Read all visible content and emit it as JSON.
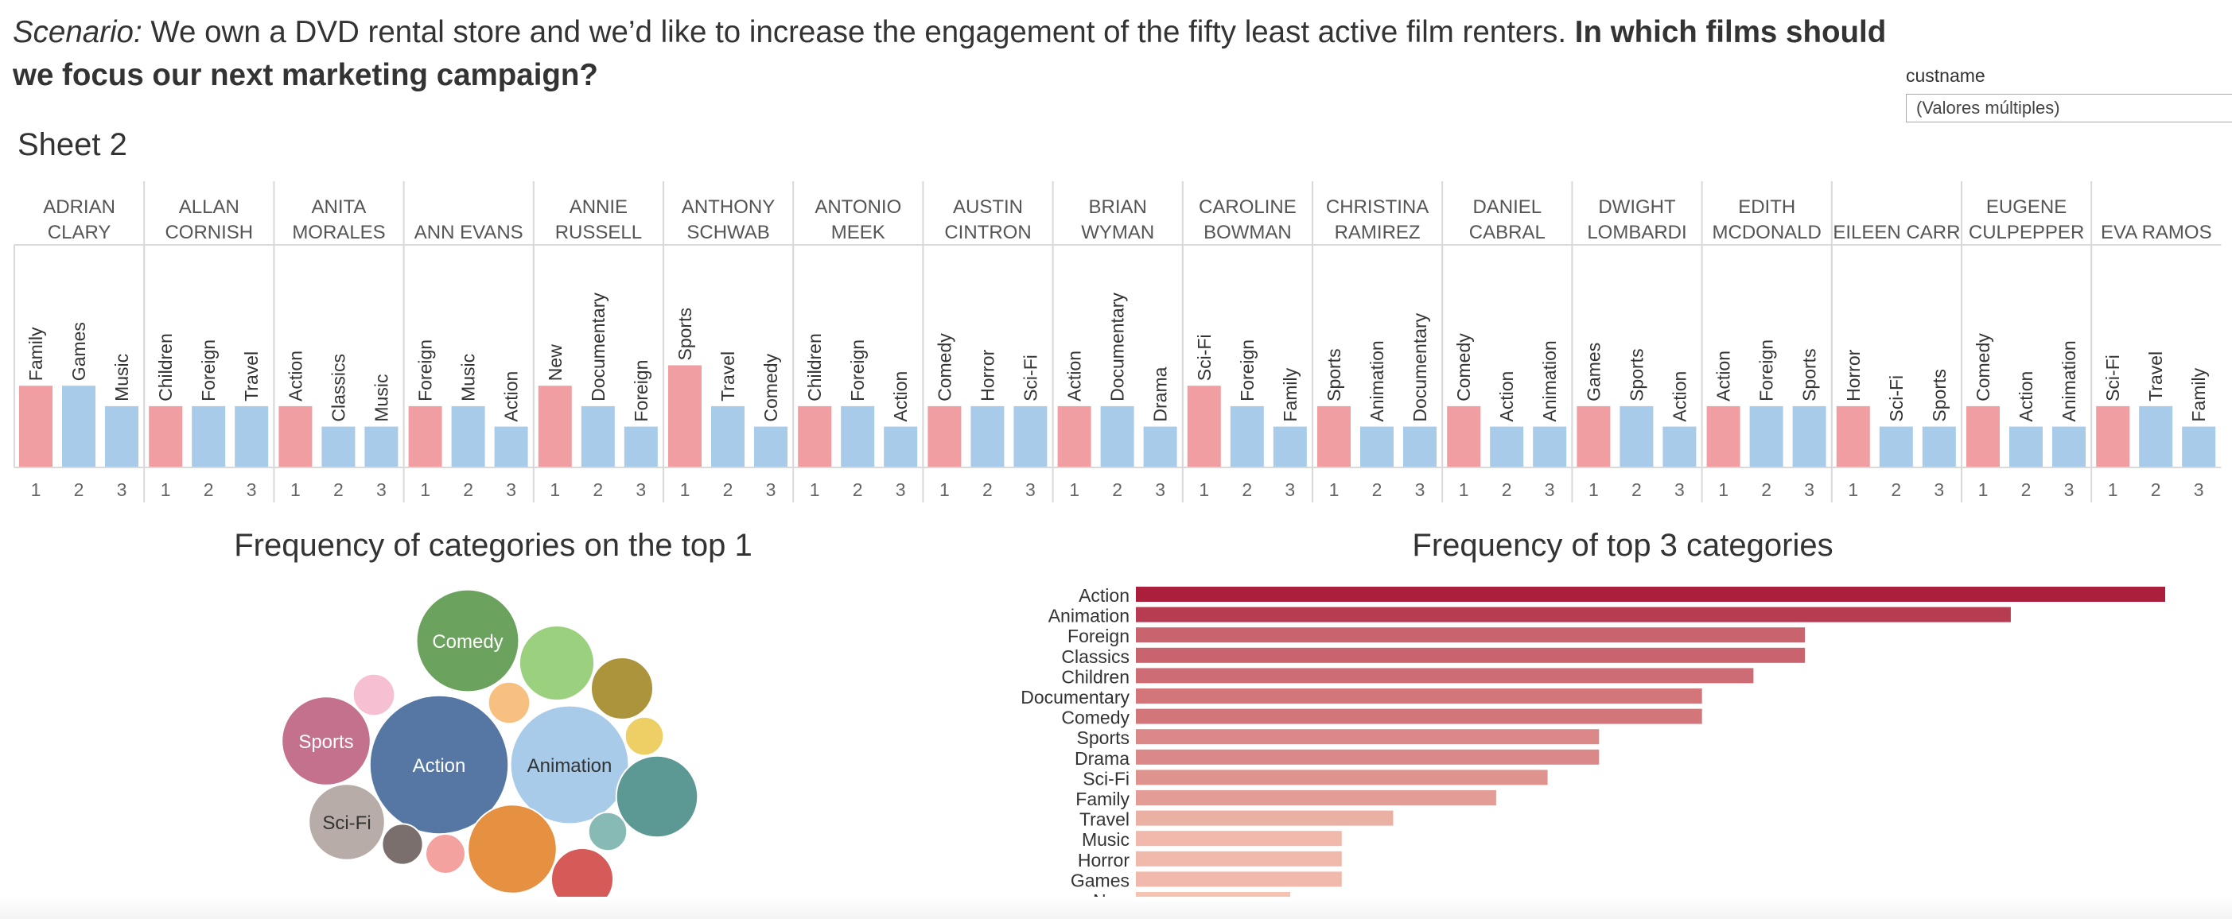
{
  "header": {
    "scenario_label": "Scenario:",
    "scenario_text": " We own a DVD rental store and we’d like to increase the engagement of the fifty least active film renters.  ",
    "question": "In which films should we focus our next marketing campaign?"
  },
  "filter": {
    "label": "custname",
    "value": "(Valores múltiples)"
  },
  "sheet_title": "Sheet 2",
  "colors": {
    "top1": "#f19ea3",
    "others": "#a7cbe8",
    "grid": "#d9d9d9"
  },
  "chart_data": [
    {
      "type": "bar",
      "title": "Sheet 2",
      "ranks": [
        "1",
        "2",
        "3"
      ],
      "customers": [
        {
          "name": [
            "ADRIAN",
            "CLARY"
          ],
          "categories": [
            "Family",
            "Games",
            "Music"
          ],
          "values": [
            4,
            4,
            3
          ]
        },
        {
          "name": [
            "ALLAN",
            "CORNISH"
          ],
          "categories": [
            "Children",
            "Foreign",
            "Travel"
          ],
          "values": [
            3,
            3,
            3
          ]
        },
        {
          "name": [
            "ANITA",
            "MORALES"
          ],
          "categories": [
            "Action",
            "Classics",
            "Music"
          ],
          "values": [
            3,
            2,
            2
          ]
        },
        {
          "name": [
            "ANN EVANS"
          ],
          "categories": [
            "Foreign",
            "Music",
            "Action"
          ],
          "values": [
            3,
            3,
            2
          ]
        },
        {
          "name": [
            "ANNIE",
            "RUSSELL"
          ],
          "categories": [
            "New",
            "Documentary",
            "Foreign"
          ],
          "values": [
            4,
            3,
            2
          ]
        },
        {
          "name": [
            "ANTHONY",
            "SCHWAB"
          ],
          "categories": [
            "Sports",
            "Travel",
            "Comedy"
          ],
          "values": [
            5,
            3,
            2
          ]
        },
        {
          "name": [
            "ANTONIO",
            "MEEK"
          ],
          "categories": [
            "Children",
            "Foreign",
            "Action"
          ],
          "values": [
            3,
            3,
            2
          ]
        },
        {
          "name": [
            "AUSTIN",
            "CINTRON"
          ],
          "categories": [
            "Comedy",
            "Horror",
            "Sci-Fi"
          ],
          "values": [
            3,
            3,
            3
          ]
        },
        {
          "name": [
            "BRIAN",
            "WYMAN"
          ],
          "categories": [
            "Action",
            "Documentary",
            "Drama"
          ],
          "values": [
            3,
            3,
            2
          ]
        },
        {
          "name": [
            "CAROLINE",
            "BOWMAN"
          ],
          "categories": [
            "Sci-Fi",
            "Foreign",
            "Family"
          ],
          "values": [
            4,
            3,
            2
          ]
        },
        {
          "name": [
            "CHRISTINA",
            "RAMIREZ"
          ],
          "categories": [
            "Sports",
            "Animation",
            "Documentary"
          ],
          "values": [
            3,
            2,
            2
          ]
        },
        {
          "name": [
            "DANIEL",
            "CABRAL"
          ],
          "categories": [
            "Comedy",
            "Action",
            "Animation"
          ],
          "values": [
            3,
            2,
            2
          ]
        },
        {
          "name": [
            "DWIGHT",
            "LOMBARDI"
          ],
          "categories": [
            "Games",
            "Sports",
            "Action"
          ],
          "values": [
            3,
            3,
            2
          ]
        },
        {
          "name": [
            "EDITH",
            "MCDONALD"
          ],
          "categories": [
            "Action",
            "Foreign",
            "Sports"
          ],
          "values": [
            3,
            3,
            3
          ]
        },
        {
          "name": [
            "EILEEN CARR"
          ],
          "categories": [
            "Horror",
            "Sci-Fi",
            "Sports"
          ],
          "values": [
            3,
            2,
            2
          ]
        },
        {
          "name": [
            "EUGENE",
            "CULPEPPER"
          ],
          "categories": [
            "Comedy",
            "Action",
            "Animation"
          ],
          "values": [
            3,
            2,
            2
          ]
        },
        {
          "name": [
            "EVA RAMOS"
          ],
          "categories": [
            "Sci-Fi",
            "Travel",
            "Family"
          ],
          "values": [
            3,
            3,
            2
          ]
        }
      ]
    },
    {
      "type": "bubble",
      "title": "Frequency of categories on the top 1",
      "bubbles": [
        {
          "label": "Action",
          "value": 11,
          "color": "#5677a4",
          "text_color": "#ffffff",
          "show_label": true
        },
        {
          "label": "Animation",
          "value": 8,
          "color": "#a7cbe8",
          "text_color": "#333333",
          "show_label": true
        },
        {
          "label": "Comedy",
          "value": 6,
          "color": "#6ba25d",
          "text_color": "#ffffff",
          "show_label": true
        },
        {
          "label": "Sports",
          "value": 4.5,
          "color": "#c4718d",
          "text_color": "#ffffff",
          "show_label": true
        },
        {
          "label": "Sci-Fi",
          "value": 3.3,
          "color": "#b7aca7",
          "text_color": "#333333",
          "show_label": true
        },
        {
          "label": "",
          "value": 4.5,
          "color": "#e69141",
          "show_label": false
        },
        {
          "label": "",
          "value": 3.8,
          "color": "#5c9994",
          "show_label": false
        },
        {
          "label": "",
          "value": 3.2,
          "color": "#9bd17e",
          "show_label": false
        },
        {
          "label": "",
          "value": 2.2,
          "color": "#ac943d",
          "show_label": false
        },
        {
          "label": "",
          "value": 2.2,
          "color": "#d55a58",
          "show_label": false
        },
        {
          "label": "",
          "value": 1,
          "color": "#f6bfd2",
          "show_label": false
        },
        {
          "label": "",
          "value": 1,
          "color": "#f7c081",
          "show_label": false
        },
        {
          "label": "",
          "value": 0.95,
          "color": "#7a6f6c",
          "show_label": false
        },
        {
          "label": "",
          "value": 0.9,
          "color": "#f3a29f",
          "show_label": false
        },
        {
          "label": "",
          "value": 0.85,
          "color": "#edcf65",
          "show_label": false
        },
        {
          "label": "",
          "value": 0.85,
          "color": "#87bab5",
          "show_label": false
        }
      ]
    },
    {
      "type": "bar",
      "orientation": "horizontal",
      "title": "Frequency of top 3 categories",
      "categories": [
        "Action",
        "Animation",
        "Foreign",
        "Classics",
        "Children",
        "Documentary",
        "Comedy",
        "Sports",
        "Drama",
        "Sci-Fi",
        "Family",
        "Travel",
        "Music",
        "Horror",
        "Games",
        "New"
      ],
      "values": [
        20,
        17,
        13,
        13,
        12,
        11,
        11,
        9,
        9,
        8,
        7,
        5,
        4,
        4,
        4,
        3
      ],
      "color_range": [
        "#f4c3b2",
        "#ab1f3c"
      ]
    }
  ]
}
